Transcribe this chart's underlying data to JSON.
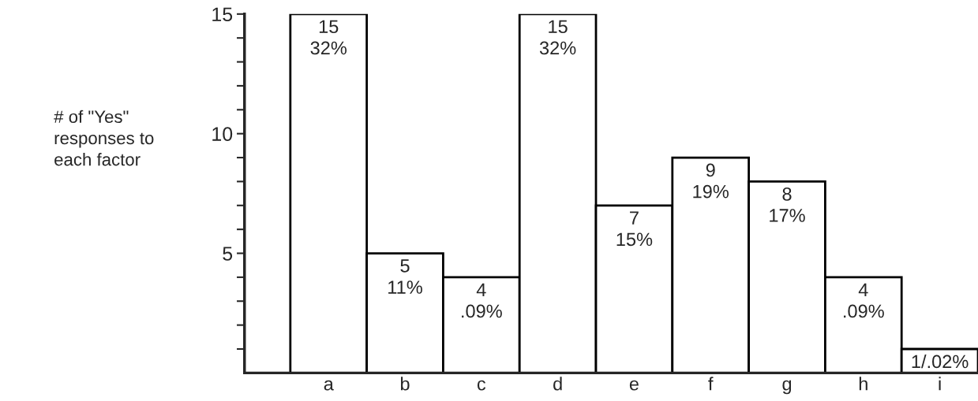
{
  "chart_data": {
    "type": "bar",
    "ylabel": "# of \"Yes\"\nresponses to\neach factor",
    "categories": [
      "a",
      "b",
      "c",
      "d",
      "e",
      "f",
      "g",
      "h",
      "i"
    ],
    "series": [
      {
        "color": "#ffffff",
        "values": [
          15,
          5,
          4,
          15,
          7,
          9,
          8,
          4,
          1
        ]
      }
    ],
    "value_labels": [
      "15\n32%",
      "5\n11%",
      "4\n.09%",
      "15\n32%",
      "7\n15%",
      "9\n19%",
      "8\n17%",
      "4\n.09%",
      "1/.02%"
    ],
    "ylim": [
      0,
      15
    ],
    "yticks": [
      {
        "value": 1,
        "label": null
      },
      {
        "value": 2,
        "label": null
      },
      {
        "value": 3,
        "label": null
      },
      {
        "value": 4,
        "label": null
      },
      5,
      {
        "value": 6,
        "label": null
      },
      {
        "value": 7,
        "label": null
      },
      {
        "value": 8,
        "label": null
      },
      {
        "value": 9,
        "label": null
      },
      10,
      {
        "value": 11,
        "label": null
      },
      {
        "value": 12,
        "label": null
      },
      {
        "value": 13,
        "label": null
      },
      {
        "value": 14,
        "label": null
      },
      15
    ],
    "grid": false,
    "legend": false
  }
}
